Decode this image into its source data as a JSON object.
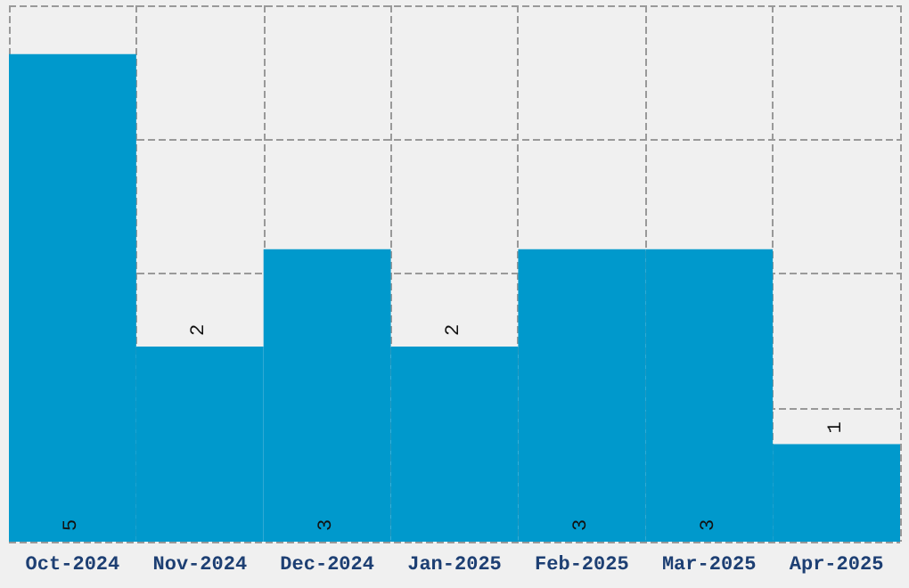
{
  "chart_data": {
    "type": "bar",
    "categories": [
      "Oct-2024",
      "Nov-2024",
      "Dec-2024",
      "Jan-2025",
      "Feb-2025",
      "Mar-2025",
      "Apr-2025"
    ],
    "values": [
      5,
      2,
      3,
      2,
      3,
      3,
      1
    ],
    "color": "#0099cc",
    "data_labels": true,
    "ylim": [
      0,
      5.5
    ],
    "yticks": [
      {
        "value": 0,
        "label": null
      },
      {
        "value": 1.375,
        "label": null
      },
      {
        "value": 2.75,
        "label": null
      },
      {
        "value": 4.125,
        "label": null
      },
      {
        "value": 5.5,
        "label": null
      }
    ],
    "tick_labels": "x",
    "grid": true
  }
}
